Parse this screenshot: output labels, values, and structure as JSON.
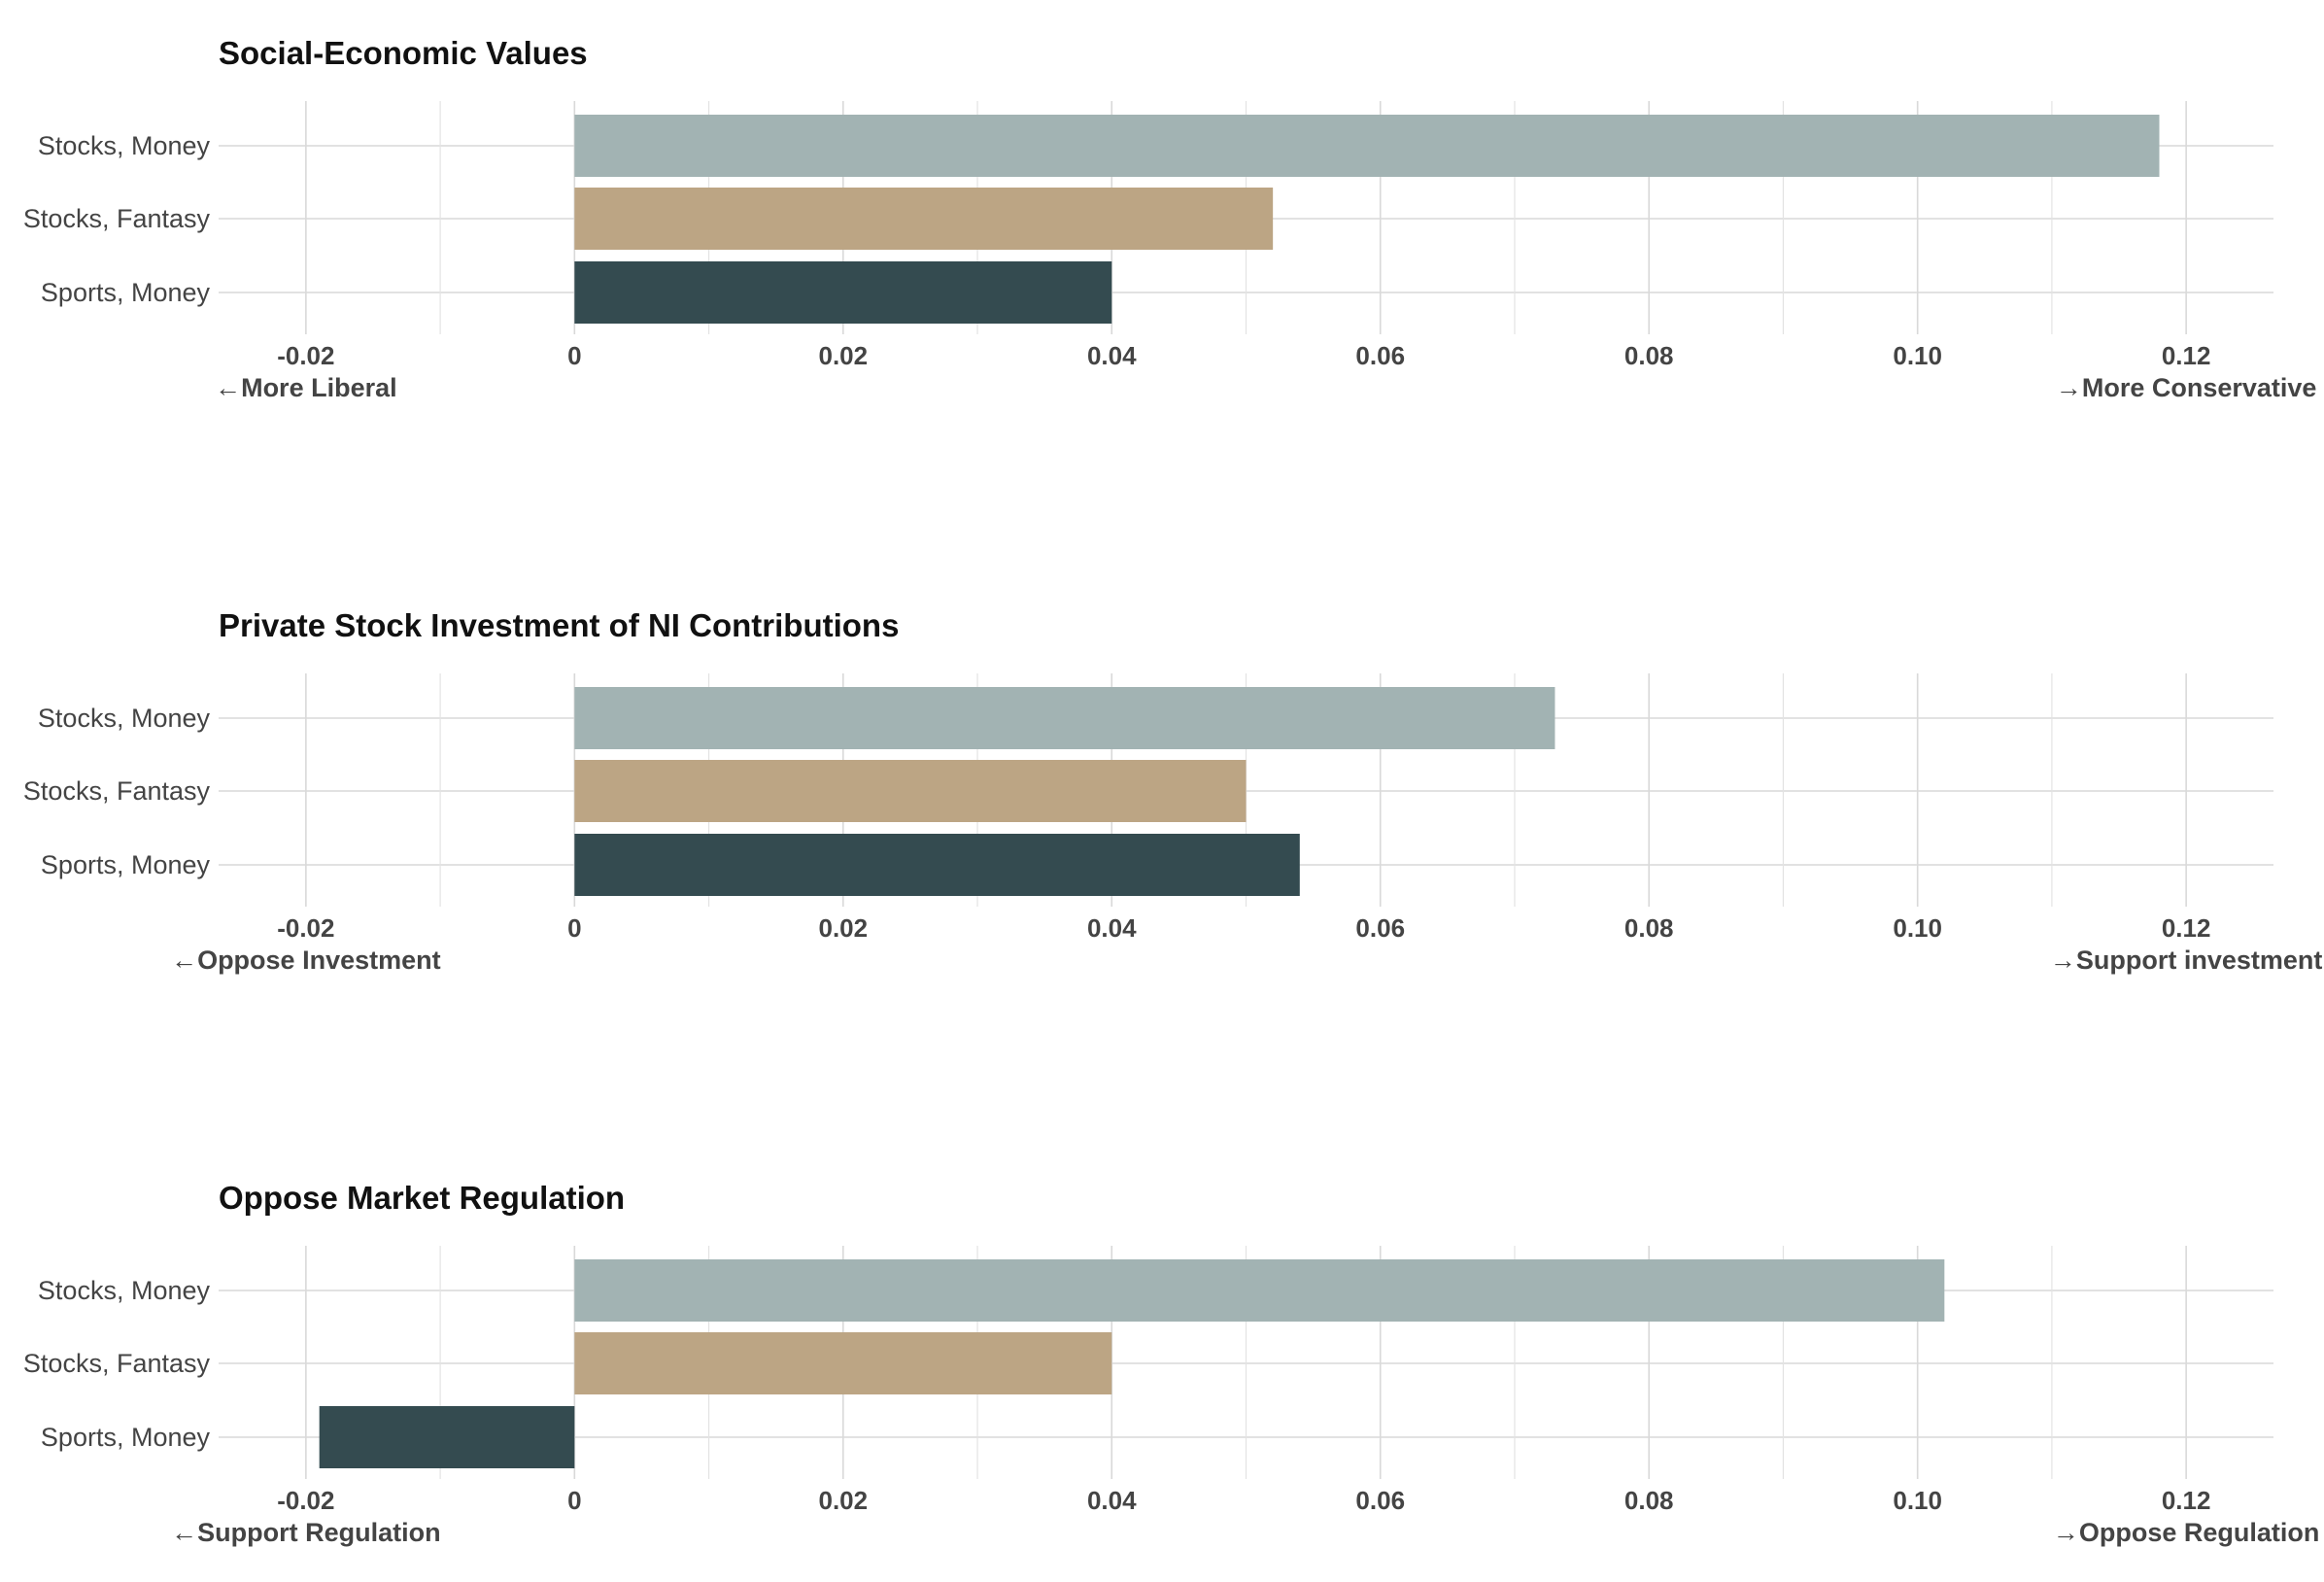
{
  "colors": {
    "stocks_money": "#a2b3b3",
    "stocks_fantasy": "#bca584",
    "sports_money": "#344b50",
    "grid": "#d9d9d9",
    "text": "#444444",
    "title": "#111111"
  },
  "chart_data": [
    {
      "type": "bar",
      "orientation": "horizontal",
      "title": "Social-Economic Values",
      "categories": [
        "Stocks, Money",
        "Stocks, Fantasy",
        "Sports, Money"
      ],
      "values": [
        0.118,
        0.052,
        0.04
      ],
      "xlim": [
        -0.0265,
        0.1265
      ],
      "xticks": [
        -0.02,
        0,
        0.02,
        0.04,
        0.06,
        0.08,
        0.1,
        0.12
      ],
      "xtick_labels": [
        "-0.02",
        "0",
        "0.02",
        "0.04",
        "0.06",
        "0.08",
        "0.10",
        "0.12"
      ],
      "left_label": "←More Liberal",
      "right_label": "→More Conservative",
      "grid": true,
      "legend": "none"
    },
    {
      "type": "bar",
      "orientation": "horizontal",
      "title": "Private Stock Investment of NI Contributions",
      "categories": [
        "Stocks, Money",
        "Stocks, Fantasy",
        "Sports, Money"
      ],
      "values": [
        0.073,
        0.05,
        0.054
      ],
      "xlim": [
        -0.0265,
        0.1265
      ],
      "xticks": [
        -0.02,
        0,
        0.02,
        0.04,
        0.06,
        0.08,
        0.1,
        0.12
      ],
      "xtick_labels": [
        "-0.02",
        "0",
        "0.02",
        "0.04",
        "0.06",
        "0.08",
        "0.10",
        "0.12"
      ],
      "left_label": "←Oppose Investment",
      "right_label": "→Support investment",
      "grid": true,
      "legend": "none"
    },
    {
      "type": "bar",
      "orientation": "horizontal",
      "title": "Oppose Market Regulation",
      "categories": [
        "Stocks, Money",
        "Stocks, Fantasy",
        "Sports, Money"
      ],
      "values": [
        0.102,
        0.04,
        -0.019
      ],
      "xlim": [
        -0.0265,
        0.1265
      ],
      "xticks": [
        -0.02,
        0,
        0.02,
        0.04,
        0.06,
        0.08,
        0.1,
        0.12
      ],
      "xtick_labels": [
        "-0.02",
        "0",
        "0.02",
        "0.04",
        "0.06",
        "0.08",
        "0.10",
        "0.12"
      ],
      "left_label": "←Support Regulation",
      "right_label": "→Oppose Regulation",
      "grid": true,
      "legend": "none"
    }
  ]
}
